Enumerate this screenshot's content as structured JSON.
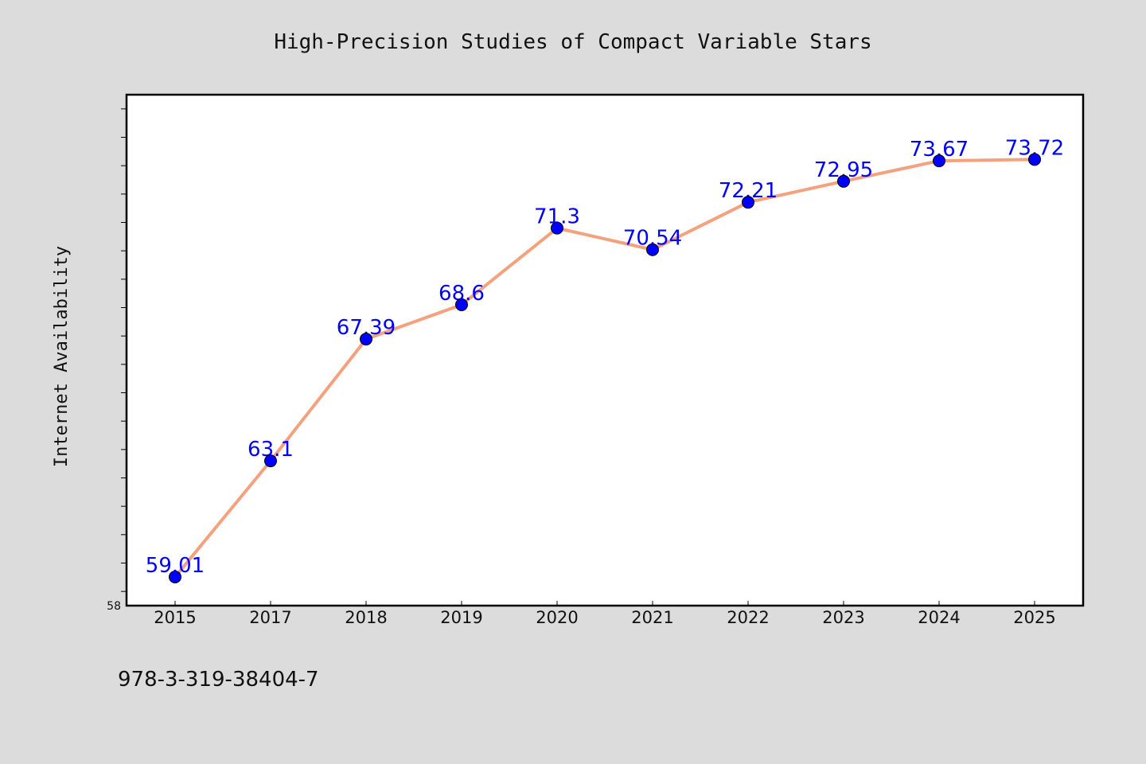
{
  "chart_data": {
    "type": "line",
    "title": "High-Precision Studies of Compact Variable Stars",
    "xlabel": "",
    "ylabel": "Internet Availability",
    "categories": [
      "2015",
      "2017",
      "2018",
      "2019",
      "2020",
      "2021",
      "2022",
      "2023",
      "2024",
      "2025"
    ],
    "series": [
      {
        "values": [
          59.01,
          63.1,
          67.39,
          68.6,
          71.3,
          70.54,
          72.21,
          72.95,
          73.67,
          73.72
        ]
      }
    ],
    "data_labels": [
      "59.01",
      "63.1",
      "67.39",
      "68.6",
      "71.3",
      "70.54",
      "72.21",
      "72.95",
      "73.67",
      "73.72"
    ],
    "ylim": [
      58,
      76
    ],
    "y_tick_labels": [
      "58"
    ],
    "grid": false,
    "legend": "none",
    "colors": {
      "line": "#f4a27e",
      "marker": "#0000ff",
      "label": "#0000ff",
      "plot_background": "#ffffff",
      "figure_background": "#dcdcdc"
    }
  },
  "footer": {
    "isbn": "978-3-319-38404-7"
  }
}
